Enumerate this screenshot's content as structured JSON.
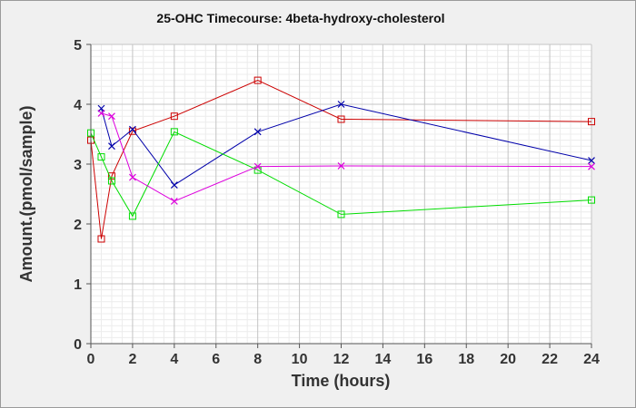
{
  "chart_data": {
    "type": "line",
    "title": "25-OHC Timecourse: 4beta-hydroxy-cholesterol",
    "xlabel": "Time (hours)",
    "ylabel": "Amount.(pmol/sample)",
    "xlim": [
      0,
      24
    ],
    "ylim": [
      0,
      5
    ],
    "xticks": [
      0,
      2,
      4,
      6,
      8,
      10,
      12,
      14,
      16,
      18,
      20,
      22,
      24
    ],
    "yticks": [
      0,
      1,
      2,
      3,
      4,
      5
    ],
    "grid": true,
    "series": [
      {
        "name": "red",
        "color": "#cc0000",
        "marker": "square",
        "x": [
          0,
          0.5,
          1,
          2,
          4,
          8,
          12,
          24
        ],
        "y": [
          3.4,
          1.75,
          2.8,
          3.55,
          3.8,
          4.4,
          3.75,
          3.71
        ]
      },
      {
        "name": "blue",
        "color": "#0000aa",
        "marker": "x",
        "x": [
          0.5,
          1,
          2,
          4,
          8,
          12,
          24
        ],
        "y": [
          3.93,
          3.3,
          3.58,
          2.65,
          3.54,
          4.0,
          3.06
        ]
      },
      {
        "name": "green",
        "color": "#00dd00",
        "marker": "square",
        "x": [
          0,
          0.5,
          1,
          2,
          4,
          8,
          12,
          24
        ],
        "y": [
          3.52,
          3.12,
          2.72,
          2.13,
          3.54,
          2.9,
          2.16,
          2.4
        ]
      },
      {
        "name": "magenta",
        "color": "#dd00dd",
        "marker": "x",
        "x": [
          0.5,
          1,
          2,
          4,
          8,
          12,
          24
        ],
        "y": [
          3.85,
          3.8,
          2.78,
          2.38,
          2.96,
          2.97,
          2.96
        ]
      }
    ]
  }
}
